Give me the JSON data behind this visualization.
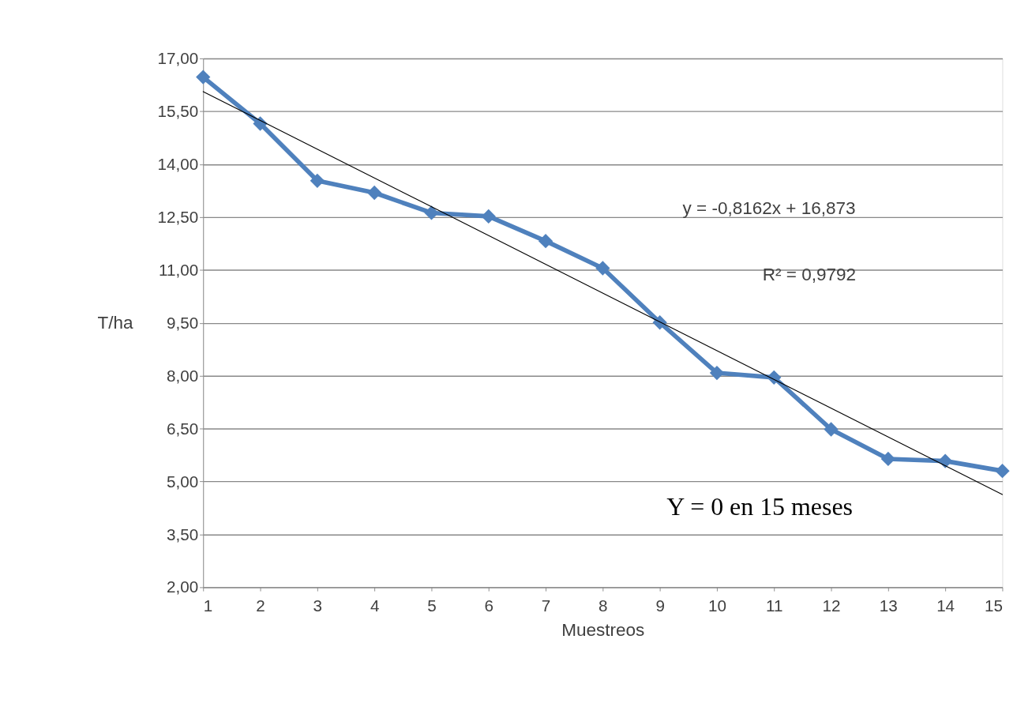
{
  "chart_data": {
    "type": "line",
    "xlabel": "Muestreos",
    "ylabel": "T/ha",
    "x": [
      1,
      2,
      3,
      4,
      5,
      6,
      7,
      8,
      9,
      10,
      11,
      12,
      13,
      14,
      15
    ],
    "series": [
      {
        "color": "#4f81bd",
        "values": [
          16.47,
          15.15,
          13.53,
          13.19,
          12.62,
          12.52,
          11.82,
          11.05,
          9.51,
          8.08,
          7.95,
          6.48,
          5.64,
          5.58,
          5.3
        ]
      },
      {
        "type": "line",
        "color": "#000000",
        "marker": "none",
        "x": [
          1,
          15
        ],
        "values": [
          16.06,
          4.63
        ]
      }
    ],
    "xlim": [
      1,
      15
    ],
    "xticks": [
      1,
      2,
      3,
      4,
      5,
      6,
      7,
      8,
      9,
      10,
      11,
      12,
      13,
      14,
      15
    ],
    "ylim": [
      2,
      17
    ],
    "yticks": [
      {
        "value": 2,
        "label": "2,00"
      },
      {
        "value": 3.5,
        "label": "3,50"
      },
      {
        "value": 5,
        "label": "5,00"
      },
      {
        "value": 6.5,
        "label": "6,50"
      },
      {
        "value": 8,
        "label": "8,00"
      },
      {
        "value": 9.5,
        "label": "9,50"
      },
      {
        "value": 11,
        "label": "11,00"
      },
      {
        "value": 12.5,
        "label": "12,50"
      },
      {
        "value": 14,
        "label": "14,00"
      },
      {
        "value": 15.5,
        "label": "15,50"
      },
      {
        "value": 17,
        "label": "17,00"
      }
    ],
    "grid": "y",
    "marker": "diamond",
    "line_style": "solid",
    "annotations": [
      "y = -0,8162x + 16,873",
      "R² = 0,9792",
      "Y = 0 en 15 meses"
    ]
  }
}
